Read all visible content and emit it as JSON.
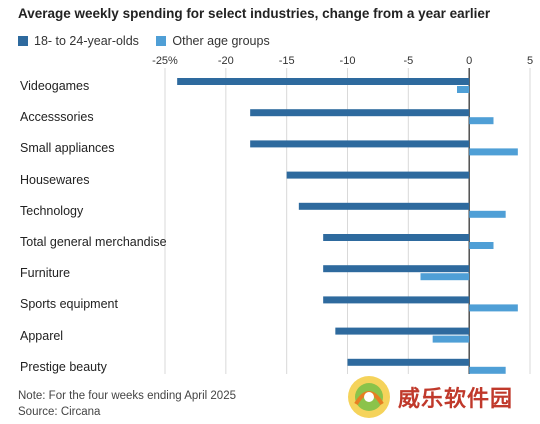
{
  "title": "Average weekly spending for select industries, change from a year earlier",
  "legend": {
    "series_a": "18- to 24-year-olds",
    "series_b": "Other age groups"
  },
  "notes": {
    "note": "Note: For the four weeks ending April 2025",
    "source": "Source: Circana"
  },
  "watermark": {
    "text": "威乐软件园"
  },
  "colors": {
    "series_a": "#2e6a9e",
    "series_b": "#4f9fd6",
    "grid": "#d9d9d9",
    "zero": "#222222"
  },
  "chart_data": {
    "type": "bar",
    "orientation": "horizontal",
    "categories": [
      "Videogames",
      "Accesssories",
      "Small appliances",
      "Housewares",
      "Technology",
      "Total general merchandise",
      "Furniture",
      "Sports equipment",
      "Apparel",
      "Prestige beauty"
    ],
    "series": [
      {
        "name": "18- to 24-year-olds",
        "values": [
          -24,
          -18,
          -18,
          -15,
          -14,
          -12,
          -12,
          -12,
          -11,
          -10
        ]
      },
      {
        "name": "Other age groups",
        "values": [
          -1,
          2,
          4,
          0,
          3,
          2,
          -4,
          4,
          -3,
          3
        ]
      }
    ],
    "xlim": [
      -25,
      5
    ],
    "ticks": [
      -25,
      -20,
      -15,
      -10,
      -5,
      0,
      5
    ],
    "tick_labels": [
      "-25%",
      "-20",
      "-15",
      "-10",
      "-5",
      "0",
      "5"
    ],
    "grid": true
  }
}
